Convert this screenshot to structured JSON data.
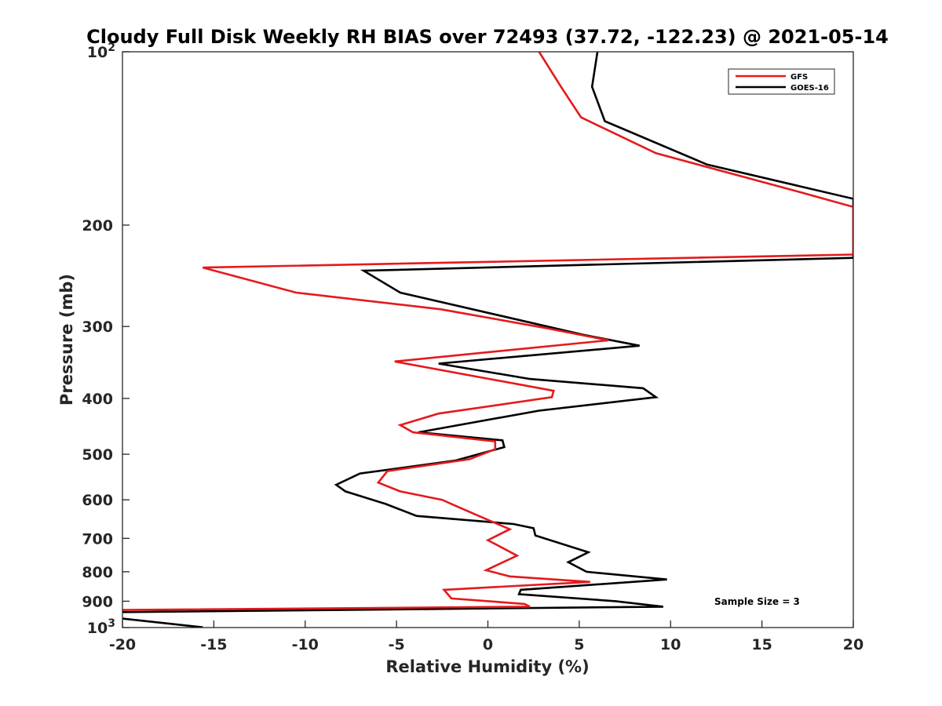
{
  "chart_data": {
    "type": "line",
    "title": "Cloudy Full Disk Weekly RH BIAS over 72493 (37.72, -122.23) @ 2021-05-14",
    "xlabel": "Relative Humidity (%)",
    "ylabel": "Pressure (mb)",
    "xlim": [
      -20,
      20
    ],
    "ylim": [
      100,
      1000
    ],
    "y_scale": "log",
    "y_reversed": true,
    "x_ticks": [
      "-20",
      "-15",
      "-10",
      "-5",
      "0",
      "5",
      "10",
      "15",
      "20"
    ],
    "y_ticks": [
      {
        "value": 100,
        "base": "10",
        "exp": "2"
      },
      {
        "value": 200,
        "label": "200"
      },
      {
        "value": 300,
        "label": "300"
      },
      {
        "value": 400,
        "label": "400"
      },
      {
        "value": 500,
        "label": "500"
      },
      {
        "value": 600,
        "label": "600"
      },
      {
        "value": 700,
        "label": "700"
      },
      {
        "value": 800,
        "label": "800"
      },
      {
        "value": 900,
        "label": "900"
      },
      {
        "value": 1000,
        "base": "10",
        "exp": "3"
      }
    ],
    "legend_position": "top-right",
    "grid": false,
    "annotation": "Sample Size = 3",
    "series": [
      {
        "name": "GFS",
        "color": "#e41a1c",
        "points": [
          [
            2.8,
            100
          ],
          [
            4.0,
            115
          ],
          [
            5.1,
            130
          ],
          [
            9.2,
            150
          ],
          [
            17,
            175
          ],
          [
            20,
            186
          ],
          [
            20,
            225
          ],
          [
            -15.6,
            237
          ],
          [
            -10.5,
            262
          ],
          [
            -2.6,
            280
          ],
          [
            3.2,
            302
          ],
          [
            6.6,
            317
          ],
          [
            -5.1,
            345
          ],
          [
            3.6,
            388
          ],
          [
            3.5,
            398
          ],
          [
            -2.7,
            425
          ],
          [
            -4.8,
            445
          ],
          [
            -4.1,
            458
          ],
          [
            0.4,
            475
          ],
          [
            0.4,
            490
          ],
          [
            -1.0,
            510
          ],
          [
            -5.5,
            535
          ],
          [
            -6.0,
            560
          ],
          [
            -4.8,
            580
          ],
          [
            -2.5,
            600
          ],
          [
            -1.5,
            620
          ],
          [
            0.0,
            650
          ],
          [
            1.2,
            675
          ],
          [
            0.0,
            705
          ],
          [
            1.6,
            750
          ],
          [
            -0.1,
            795
          ],
          [
            1.2,
            815
          ],
          [
            5.6,
            833
          ],
          [
            -2.4,
            860
          ],
          [
            -2.0,
            890
          ],
          [
            2.0,
            910
          ],
          [
            2.3,
            920
          ],
          [
            -20,
            932
          ]
        ]
      },
      {
        "name": "GOES-16",
        "color": "#000000",
        "points": [
          [
            6.0,
            100
          ],
          [
            5.7,
            115
          ],
          [
            6.4,
            132
          ],
          [
            12.0,
            157
          ],
          [
            20,
            180
          ],
          [
            20,
            228
          ],
          [
            -6.8,
            240
          ],
          [
            -4.8,
            262
          ],
          [
            5.2,
            310
          ],
          [
            8.3,
            324
          ],
          [
            -2.7,
            348
          ],
          [
            2.3,
            370
          ],
          [
            8.5,
            384
          ],
          [
            9.2,
            398
          ],
          [
            2.8,
            420
          ],
          [
            -3.8,
            458
          ],
          [
            0.8,
            473
          ],
          [
            0.9,
            486
          ],
          [
            -1.8,
            513
          ],
          [
            -7.0,
            540
          ],
          [
            -8.3,
            565
          ],
          [
            -7.8,
            580
          ],
          [
            -5.6,
            610
          ],
          [
            -3.9,
            640
          ],
          [
            1.4,
            661
          ],
          [
            2.5,
            672
          ],
          [
            2.6,
            692
          ],
          [
            5.5,
            740
          ],
          [
            4.4,
            770
          ],
          [
            5.4,
            800
          ],
          [
            9.8,
            825
          ],
          [
            1.8,
            860
          ],
          [
            1.7,
            875
          ],
          [
            7.0,
            900
          ],
          [
            9.6,
            920
          ],
          [
            -20,
            940
          ]
        ],
        "extra_segment": [
          [
            -20,
            965
          ],
          [
            -15.6,
            999
          ]
        ]
      }
    ]
  }
}
